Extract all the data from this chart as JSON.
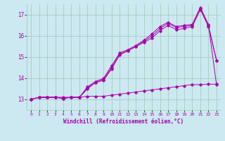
{
  "xlabel": "Windchill (Refroidissement éolien,°C)",
  "bg_color": "#cce8f0",
  "grid_color": "#a0c8b8",
  "line_color": "#aa00aa",
  "x_ticks": [
    0,
    1,
    2,
    3,
    4,
    5,
    6,
    7,
    8,
    9,
    10,
    11,
    12,
    13,
    14,
    15,
    16,
    17,
    18,
    19,
    20,
    21,
    22,
    23
  ],
  "y_ticks": [
    13,
    14,
    15,
    16,
    17
  ],
  "xlim": [
    -0.5,
    23.5
  ],
  "ylim": [
    12.5,
    17.5
  ],
  "series1_x": [
    0,
    1,
    2,
    3,
    4,
    5,
    6,
    7,
    8,
    9,
    10,
    11,
    12,
    13,
    14,
    15,
    16,
    17,
    18,
    19,
    20,
    21,
    22,
    23
  ],
  "series1_y": [
    13.0,
    13.1,
    13.1,
    13.1,
    13.1,
    13.1,
    13.1,
    13.15,
    13.15,
    13.15,
    13.2,
    13.25,
    13.3,
    13.35,
    13.4,
    13.45,
    13.5,
    13.55,
    13.6,
    13.65,
    13.7,
    13.7,
    13.72,
    13.72
  ],
  "series2_x": [
    0,
    1,
    2,
    3,
    4,
    5,
    6,
    7,
    8,
    9,
    10,
    11,
    12,
    13,
    14,
    15,
    16,
    17,
    18,
    19,
    20,
    21,
    22,
    23
  ],
  "series2_y": [
    13.0,
    13.1,
    13.1,
    13.1,
    13.05,
    13.1,
    13.1,
    13.6,
    13.85,
    14.0,
    14.6,
    15.2,
    15.35,
    15.55,
    15.8,
    16.1,
    16.45,
    16.65,
    16.45,
    16.5,
    16.55,
    17.35,
    16.55,
    13.7
  ],
  "series3_x": [
    0,
    1,
    2,
    3,
    4,
    5,
    6,
    7,
    8,
    9,
    10,
    11,
    12,
    13,
    14,
    15,
    16,
    17,
    18,
    19,
    20,
    21,
    22,
    23
  ],
  "series3_y": [
    13.0,
    13.1,
    13.1,
    13.1,
    13.05,
    13.1,
    13.1,
    13.55,
    13.8,
    13.95,
    14.5,
    15.15,
    15.3,
    15.5,
    15.75,
    16.0,
    16.35,
    16.6,
    16.4,
    16.45,
    16.5,
    17.3,
    16.5,
    14.85
  ],
  "series4_x": [
    0,
    1,
    2,
    3,
    4,
    5,
    6,
    7,
    8,
    9,
    10,
    11,
    12,
    13,
    14,
    15,
    16,
    17,
    18,
    19,
    20,
    21,
    22,
    23
  ],
  "series4_y": [
    13.0,
    13.1,
    13.1,
    13.1,
    13.05,
    13.1,
    13.1,
    13.5,
    13.8,
    13.9,
    14.45,
    15.1,
    15.3,
    15.5,
    15.7,
    15.9,
    16.25,
    16.5,
    16.3,
    16.35,
    16.45,
    17.25,
    16.45,
    14.85
  ]
}
